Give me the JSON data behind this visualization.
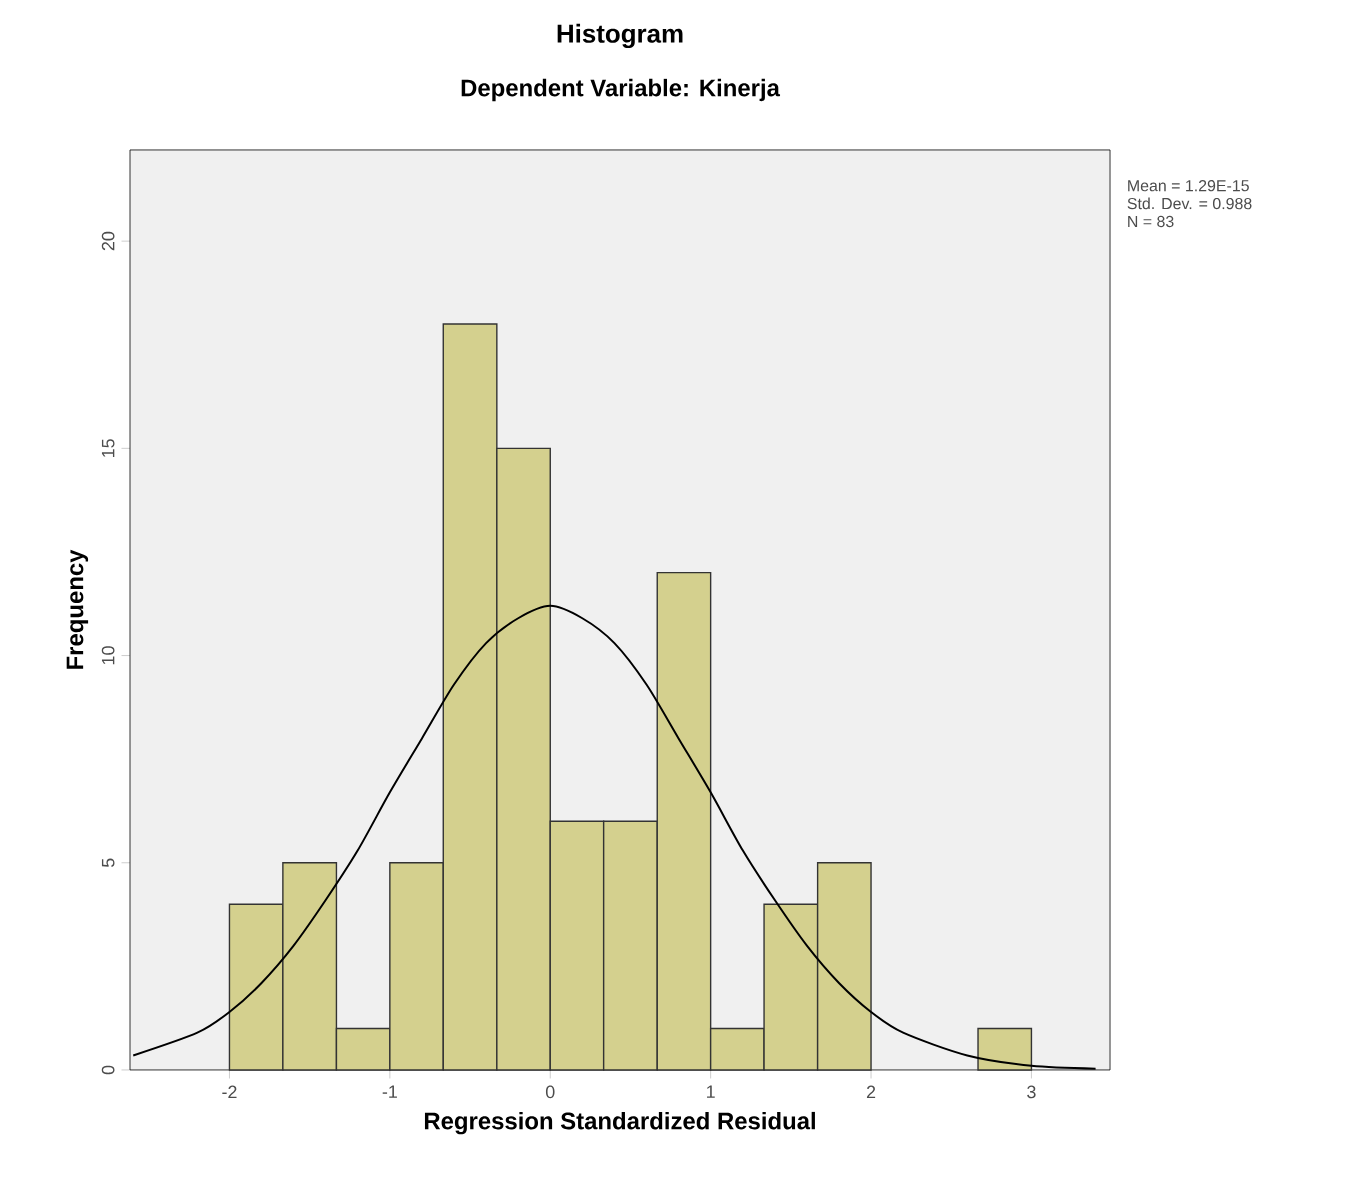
{
  "chart_data": {
    "type": "histogram",
    "title": "Histogram",
    "subtitle": "Dependent Variable: Kinerja",
    "xlabel": "Regression Standardized Residual",
    "ylabel": "Frequency",
    "annotations": [
      "Mean = 1.29E-15",
      "Std. Dev. = 0.988",
      "N = 83"
    ],
    "series": [
      {
        "color": "#d4d08e",
        "bins": [
          -2,
          -1.667,
          -1.333,
          -1,
          -0.667,
          -0.333,
          0,
          0.333,
          0.667,
          1,
          1.333,
          1.667,
          2,
          2.333,
          2.667,
          3
        ],
        "values": [
          4,
          5,
          1,
          5,
          18,
          15,
          6,
          6,
          12,
          1,
          4,
          5,
          0,
          0,
          1
        ]
      },
      {
        "type": "line",
        "color": "#000000",
        "x": [
          -2.6,
          -2.2,
          -2,
          -1.8,
          -1.6,
          -1.4,
          -1.2,
          -1,
          -0.8,
          -0.6,
          -0.4,
          -0.2,
          0,
          0.2,
          0.4,
          0.6,
          0.8,
          1,
          1.2,
          1.4,
          1.6,
          1.8,
          2,
          2.2,
          2.6,
          3,
          3.4
        ],
        "values": [
          0.35,
          0.9,
          1.4,
          2.1,
          3,
          4.1,
          5.3,
          6.7,
          8,
          9.3,
          10.3,
          10.9,
          11.2,
          10.9,
          10.3,
          9.3,
          8,
          6.7,
          5.3,
          4.1,
          3,
          2.1,
          1.4,
          0.9,
          0.35,
          0.1,
          0.03
        ]
      }
    ],
    "xlim": [
      -2.62,
      3.49
    ],
    "ylim": [
      0,
      22.2
    ],
    "xticks": [
      -2,
      -1,
      0,
      1,
      2,
      3
    ],
    "yticks": [
      0,
      5,
      10,
      15,
      20
    ]
  }
}
